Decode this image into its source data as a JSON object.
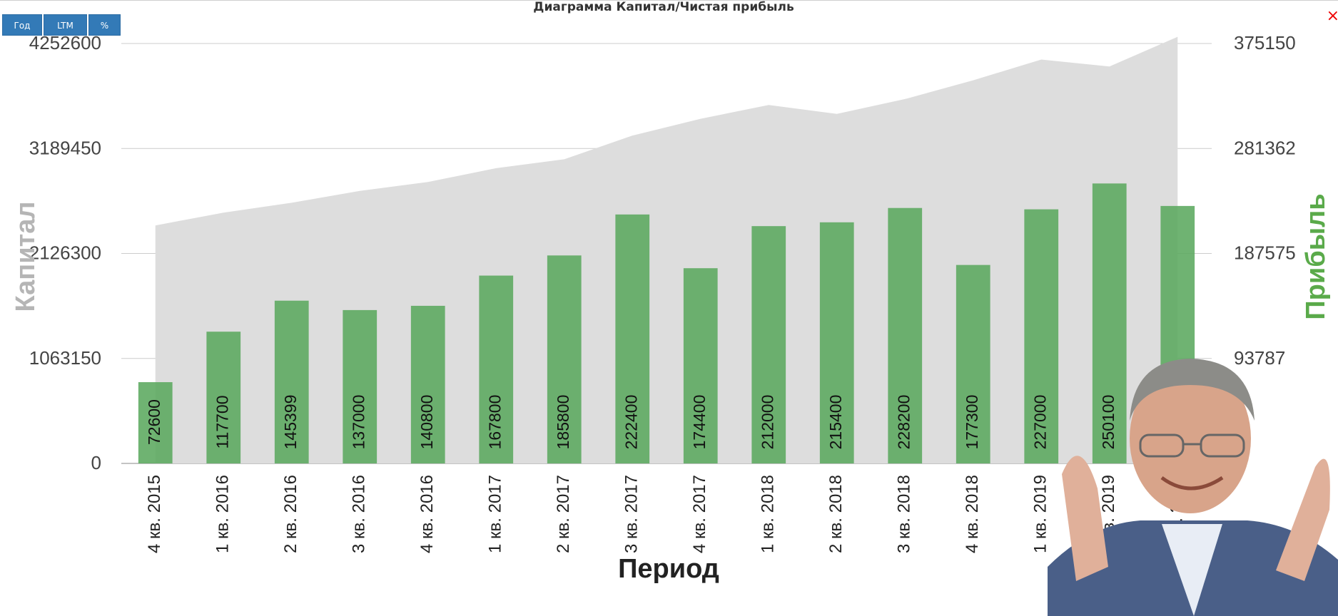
{
  "title": "Диаграмма Капитал/Чистая прибыль",
  "buttons": [
    {
      "label": "Год"
    },
    {
      "label": "LTM"
    },
    {
      "label": "%"
    }
  ],
  "close_label": "×",
  "colors": {
    "area": "#dddddd",
    "bars": "#5ba85e",
    "left_axis_title": "#b5b5b5",
    "right_axis_title": "#5aaa4a",
    "button": "#337ab7"
  },
  "chart_data": {
    "type": "bar",
    "title": "Диаграмма Капитал/Чистая прибыль",
    "xlabel": "Период",
    "ylabel_left": "Капитал",
    "ylabel_right": "Прибыль",
    "categories": [
      "4 кв. 2015",
      "1 кв. 2016",
      "2 кв. 2016",
      "3 кв. 2016",
      "4 кв. 2016",
      "1 кв. 2017",
      "2 кв. 2017",
      "3 кв. 2017",
      "4 кв. 2017",
      "1 кв. 2018",
      "2 кв. 2018",
      "3 кв. 2018",
      "4 кв. 2018",
      "1 кв. 2019",
      "2 кв. 2019",
      "3 кв. 2019"
    ],
    "left_ticks": [
      "4252600",
      "3189450",
      "2126300",
      "1063150",
      "0"
    ],
    "right_ticks": [
      "375150",
      "281362",
      "187575",
      "93787",
      "0"
    ],
    "ylim_left": [
      0,
      4252600
    ],
    "ylim_right": [
      0,
      375150
    ],
    "series": [
      {
        "type": "area",
        "axis": "left",
        "values": [
          2410000,
          2540000,
          2640000,
          2760000,
          2850000,
          2990000,
          3080000,
          3320000,
          3490000,
          3630000,
          3540000,
          3690000,
          3880000,
          4090000,
          4020000,
          4320000
        ]
      },
      {
        "type": "bar",
        "axis": "right",
        "values": [
          72600,
          117700,
          145399,
          137000,
          140800,
          167800,
          185800,
          222400,
          174400,
          212000,
          215400,
          228200,
          177300,
          227000,
          250100,
          230000
        ]
      }
    ],
    "grid": true,
    "legend": "none"
  }
}
